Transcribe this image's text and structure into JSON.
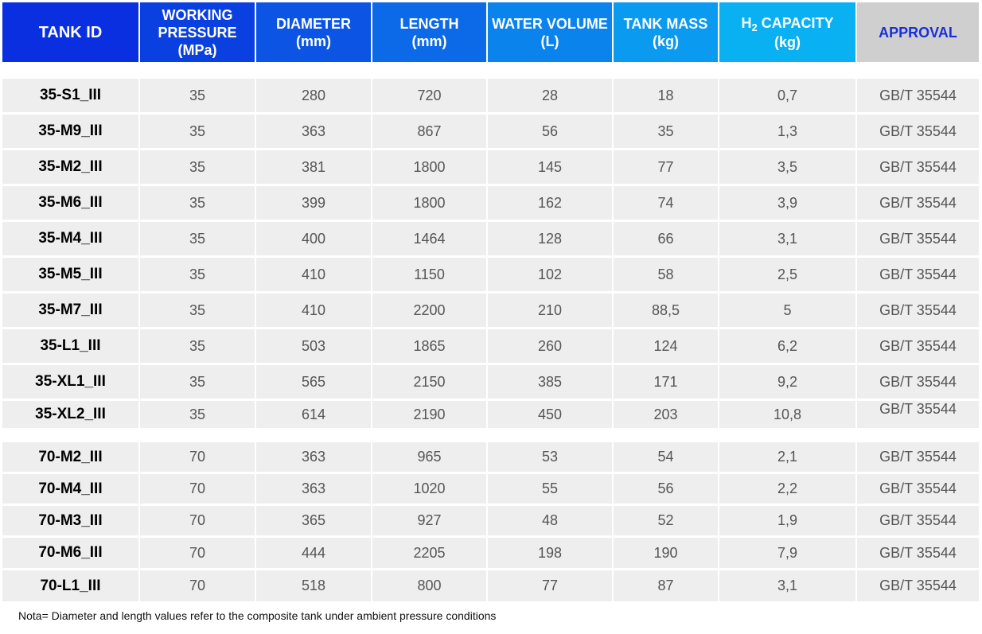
{
  "header": {
    "tank_id": "TANK ID",
    "working_pressure": [
      "WORKING",
      "PRESSURE",
      "(MPa)"
    ],
    "diameter": [
      "DIAMETER",
      "(mm)"
    ],
    "length": [
      "LENGTH",
      "(mm)"
    ],
    "water_volume": [
      "WATER VOLUME",
      "(L)"
    ],
    "tank_mass": [
      "TANK MASS",
      "(kg)"
    ],
    "h2_capacity": {
      "h": "H",
      "sub": "2",
      "rest": " CAPACITY",
      "unit": "(kg)"
    },
    "approval": "APPROVAL"
  },
  "header_colors": [
    "#0a2fe0",
    "#0b40e0",
    "#0c55e4",
    "#0c6ae8",
    "#0b83ec",
    "#0a9aef",
    "#09b0f2",
    "#d0cfd0"
  ],
  "group_35": [
    [
      "35-S1_III",
      "35",
      "280",
      "720",
      "28",
      "18",
      "0,7",
      "GB/T 35544"
    ],
    [
      "35-M9_III",
      "35",
      "363",
      "867",
      "56",
      "35",
      "1,3",
      "GB/T 35544"
    ],
    [
      "35-M2_III",
      "35",
      "381",
      "1800",
      "145",
      "77",
      "3,5",
      "GB/T 35544"
    ],
    [
      "35-M6_III",
      "35",
      "399",
      "1800",
      "162",
      "74",
      "3,9",
      "GB/T 35544"
    ],
    [
      "35-M4_III",
      "35",
      "400",
      "1464",
      "128",
      "66",
      "3,1",
      "GB/T 35544"
    ],
    [
      "35-M5_III",
      "35",
      "410",
      "1150",
      "102",
      "58",
      "2,5",
      "GB/T 35544"
    ],
    [
      "35-M7_III",
      "35",
      "410",
      "2200",
      "210",
      "88,5",
      "5",
      "GB/T 35544"
    ],
    [
      "35-L1_III",
      "35",
      "503",
      "1865",
      "260",
      "124",
      "6,2",
      "GB/T 35544"
    ],
    [
      "35-XL1_III",
      "35",
      "565",
      "2150",
      "385",
      "171",
      "9,2",
      "GB/T 35544"
    ],
    [
      "35-XL2_III",
      "35",
      "614",
      "2190",
      "450",
      "203",
      "10,8",
      "GB/T 35544"
    ]
  ],
  "group_70": [
    [
      "70-M2_III",
      "70",
      "363",
      "965",
      "53",
      "54",
      "2,1",
      "GB/T 35544"
    ],
    [
      "70-M4_III",
      "70",
      "363",
      "1020",
      "55",
      "56",
      "2,2",
      "GB/T 35544"
    ],
    [
      "70-M3_III",
      "70",
      "365",
      "927",
      "48",
      "52",
      "1,9",
      "GB/T 35544"
    ],
    [
      "70-M6_III",
      "70",
      "444",
      "2205",
      "198",
      "190",
      "7,9",
      "GB/T 35544"
    ],
    [
      "70-L1_III",
      "70",
      "518",
      "800",
      "77",
      "87",
      "3,1",
      "GB/T 35544"
    ]
  ],
  "note": "Nota= Diameter and length values refer to the composite tank under ambient pressure conditions"
}
